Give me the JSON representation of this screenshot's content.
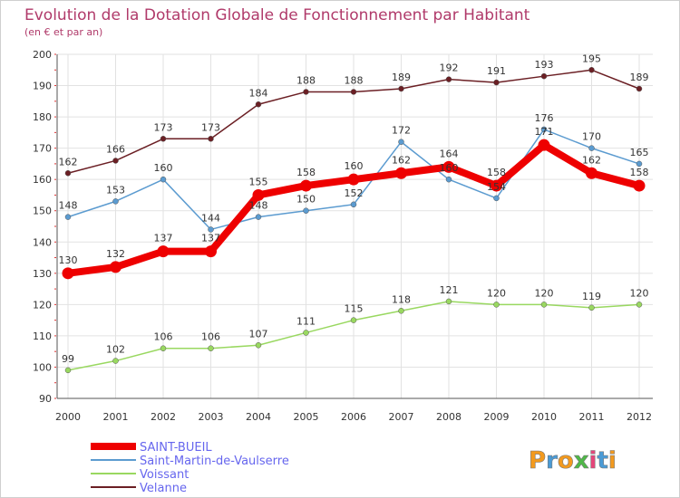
{
  "chart_data": {
    "type": "line",
    "title": "Evolution de la Dotation Globale de Fonctionnement par Habitant",
    "subtitle": "(en € et par an)",
    "xlabel": "",
    "ylabel": "",
    "x": [
      "2000",
      "2001",
      "2002",
      "2003",
      "2004",
      "2005",
      "2006",
      "2007",
      "2008",
      "2009",
      "2010",
      "2011",
      "2012"
    ],
    "ylim": [
      90,
      200
    ],
    "yticks": [
      "90",
      "100",
      "110",
      "120",
      "130",
      "140",
      "150",
      "160",
      "170",
      "180",
      "190",
      "200"
    ],
    "grid": true,
    "legend_position": "bottom-left",
    "series": [
      {
        "name": "Velanne",
        "color": "#6b1f24",
        "values": [
          162,
          166,
          173,
          173,
          184,
          188,
          188,
          189,
          192,
          191,
          193,
          195,
          189
        ]
      },
      {
        "name": "Voissant",
        "color": "#99d860",
        "values": [
          99,
          102,
          106,
          106,
          107,
          111,
          115,
          118,
          121,
          120,
          120,
          119,
          120
        ]
      },
      {
        "name": "Saint-Martin-de-Vaulserre",
        "color": "#5b9bd0",
        "values": [
          148,
          153,
          160,
          144,
          148,
          150,
          152,
          172,
          160,
          154,
          176,
          170,
          165
        ]
      },
      {
        "name": "SAINT-BUEIL",
        "color": "#ee0000",
        "values": [
          130,
          132,
          137,
          137,
          155,
          158,
          160,
          162,
          164,
          158,
          171,
          162,
          158
        ]
      }
    ],
    "legend_order": [
      "SAINT-BUEIL",
      "Saint-Martin-de-Vaulserre",
      "Voissant",
      "Velanne"
    ]
  },
  "logo": {
    "text": "Proxiti"
  }
}
